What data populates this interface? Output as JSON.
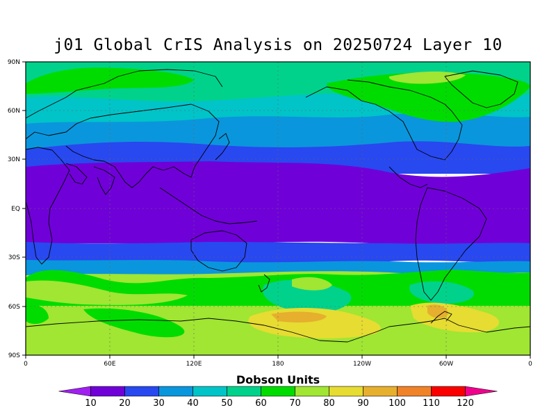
{
  "title": "j01 Global CrIS Analysis on 20250724 Layer 10",
  "map": {
    "lat_labels": [
      "90N",
      "60N",
      "30N",
      "EQ",
      "30S",
      "60S",
      "90S"
    ],
    "lon_labels": [
      "0",
      "60E",
      "120E",
      "180",
      "120W",
      "60W",
      "0"
    ]
  },
  "colorbar": {
    "title": "Dobson Units",
    "levels": [
      "10",
      "20",
      "30",
      "40",
      "50",
      "60",
      "70",
      "80",
      "90",
      "100",
      "110",
      "120"
    ],
    "colors": [
      "#a020f0",
      "#7000d8",
      "#2848f0",
      "#0a96dc",
      "#00c4c8",
      "#00d28c",
      "#00dc00",
      "#a0e632",
      "#e6dc32",
      "#e6af2d",
      "#f08228",
      "#fa0000",
      "#f0008c"
    ]
  },
  "chart_data": {
    "type": "heatmap",
    "title": "j01 Global CrIS Analysis on 20250724 Layer 10",
    "xlabel": "",
    "ylabel": "",
    "x_range": [
      0,
      360
    ],
    "y_range": [
      -90,
      90
    ],
    "units": "Dobson Units",
    "levels": [
      10,
      20,
      30,
      40,
      50,
      60,
      70,
      80,
      90,
      100,
      110,
      120
    ],
    "latitude_bands": [
      {
        "lat_range": [
          45,
          90
        ],
        "approx_value_DU": 55,
        "description": "green / teal high latitudes"
      },
      {
        "lat_range": [
          30,
          45
        ],
        "approx_value_DU": 35,
        "description": "light blue"
      },
      {
        "lat_range": [
          20,
          30
        ],
        "approx_value_DU": 25,
        "description": "blue"
      },
      {
        "lat_range": [
          -20,
          20
        ],
        "approx_value_DU": 15,
        "description": "purple tropics"
      },
      {
        "lat_range": [
          -32,
          -20
        ],
        "approx_value_DU": 25,
        "description": "blue"
      },
      {
        "lat_range": [
          -50,
          -32
        ],
        "approx_value_DU": 60,
        "description": "green / yellow-green"
      },
      {
        "lat_range": [
          -90,
          -50
        ],
        "approx_value_DU": 75,
        "description": "yellow-green / yellow Antarctic"
      }
    ]
  }
}
